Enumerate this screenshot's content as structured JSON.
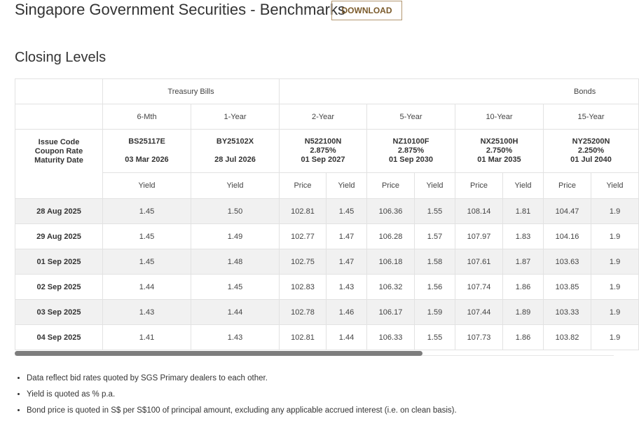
{
  "header": {
    "title": "Singapore Government Securities - Benchmarks",
    "button": "DOWNLOAD"
  },
  "section_title": "Closing Levels",
  "table": {
    "groups": [
      "Treasury Bills",
      "Bonds"
    ],
    "tenors": [
      "6-Mth",
      "1-Year",
      "2-Year",
      "5-Year",
      "10-Year",
      "15-Year"
    ],
    "issue_label": [
      "Issue Code",
      "Coupon Rate",
      "Maturity Date"
    ],
    "issues": [
      {
        "code": "BS25117E",
        "maturity": "03 Mar 2026"
      },
      {
        "code": "BY25102X",
        "maturity": "28 Jul 2026"
      },
      {
        "code": "N522100N",
        "coupon": "2.875%",
        "maturity": "01 Sep 2027"
      },
      {
        "code": "NZ10100F",
        "coupon": "2.875%",
        "maturity": "01 Sep 2030"
      },
      {
        "code": "NX25100H",
        "coupon": "2.750%",
        "maturity": "01 Mar 2035"
      },
      {
        "code": "NY25200N",
        "coupon": "2.250%",
        "maturity": "01 Jul 2040"
      }
    ],
    "subheaders": [
      "Yield",
      "Yield",
      "Price",
      "Yield",
      "Price",
      "Yield",
      "Price",
      "Yield",
      "Price",
      "Yield"
    ],
    "rows": [
      [
        "28 Aug 2025",
        "1.45",
        "1.50",
        "102.81",
        "1.45",
        "106.36",
        "1.55",
        "108.14",
        "1.81",
        "104.47",
        "1.9"
      ],
      [
        "29 Aug 2025",
        "1.45",
        "1.49",
        "102.77",
        "1.47",
        "106.28",
        "1.57",
        "107.97",
        "1.83",
        "104.16",
        "1.9"
      ],
      [
        "01 Sep 2025",
        "1.45",
        "1.48",
        "102.75",
        "1.47",
        "106.18",
        "1.58",
        "107.61",
        "1.87",
        "103.63",
        "1.9"
      ],
      [
        "02 Sep 2025",
        "1.44",
        "1.45",
        "102.83",
        "1.43",
        "106.32",
        "1.56",
        "107.74",
        "1.86",
        "103.85",
        "1.9"
      ],
      [
        "03 Sep 2025",
        "1.43",
        "1.44",
        "102.78",
        "1.46",
        "106.17",
        "1.59",
        "107.44",
        "1.89",
        "103.33",
        "1.9"
      ],
      [
        "04 Sep 2025",
        "1.41",
        "1.43",
        "102.81",
        "1.44",
        "106.33",
        "1.55",
        "107.73",
        "1.86",
        "103.82",
        "1.9"
      ]
    ]
  },
  "notes": [
    "Data reflect bid rates quoted by SGS Primary dealers to each other.",
    "Yield is quoted as % p.a.",
    "Bond price is quoted in S$ per S$100 of principal amount, excluding any applicable accrued interest (i.e. on clean basis)."
  ]
}
